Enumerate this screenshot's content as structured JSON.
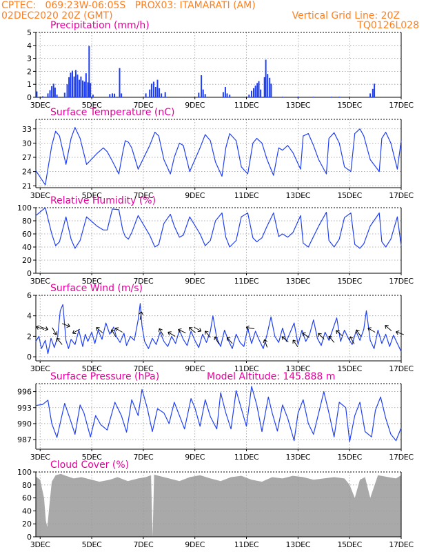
{
  "header": {
    "line1_left": "CPTEC:   069:23W-06:05S   PROX03: ITAMARATI (AM)",
    "line2_left": "02DEC2020 20Z (GMT)",
    "grid_note": "Vertical Grid Line: 20Z",
    "code": "TQ0126L028"
  },
  "colors": {
    "header": "#ff7f1e",
    "title": "#e6009a",
    "series": "#1f3ff0",
    "cloud": "#a9a9a9",
    "grid": "#9a9a9a"
  },
  "x_ticks": [
    "3DEC",
    "5DEC",
    "7DEC",
    "9DEC",
    "11DEC",
    "13DEC",
    "15DEC",
    "17DEC"
  ],
  "chart_data": [
    {
      "type": "bar",
      "title": "Precipitation (mm/h)",
      "ylim": [
        0,
        5
      ],
      "yticks": [
        0,
        1,
        2,
        3,
        4,
        5
      ],
      "x_range_days": [
        2.833,
        17.0
      ],
      "bars": [
        [
          2.87,
          0.45
        ],
        [
          3.1,
          0.08
        ],
        [
          3.3,
          0.3
        ],
        [
          3.38,
          0.55
        ],
        [
          3.45,
          0.85
        ],
        [
          3.52,
          1.05
        ],
        [
          3.58,
          0.75
        ],
        [
          3.65,
          0.2
        ],
        [
          3.95,
          0.35
        ],
        [
          4.05,
          1.0
        ],
        [
          4.12,
          1.55
        ],
        [
          4.18,
          1.9
        ],
        [
          4.25,
          2.05
        ],
        [
          4.32,
          1.6
        ],
        [
          4.38,
          2.1
        ],
        [
          4.45,
          1.75
        ],
        [
          4.52,
          1.35
        ],
        [
          4.58,
          1.6
        ],
        [
          4.65,
          1.3
        ],
        [
          4.72,
          1.2
        ],
        [
          4.78,
          1.85
        ],
        [
          4.85,
          1.15
        ],
        [
          4.9,
          3.95
        ],
        [
          4.95,
          1.1
        ],
        [
          5.05,
          0.2
        ],
        [
          5.7,
          0.25
        ],
        [
          5.8,
          0.3
        ],
        [
          5.88,
          0.28
        ],
        [
          6.08,
          2.25
        ],
        [
          6.15,
          0.3
        ],
        [
          7.1,
          0.3
        ],
        [
          7.25,
          0.6
        ],
        [
          7.32,
          1.05
        ],
        [
          7.4,
          1.2
        ],
        [
          7.48,
          0.8
        ],
        [
          7.55,
          1.35
        ],
        [
          7.62,
          0.7
        ],
        [
          7.7,
          0.3
        ],
        [
          7.85,
          0.4
        ],
        [
          9.15,
          0.35
        ],
        [
          9.25,
          1.7
        ],
        [
          9.32,
          0.6
        ],
        [
          9.4,
          0.25
        ],
        [
          10.1,
          0.4
        ],
        [
          10.18,
          0.8
        ],
        [
          10.25,
          0.3
        ],
        [
          10.35,
          0.2
        ],
        [
          11.1,
          0.2
        ],
        [
          11.2,
          0.5
        ],
        [
          11.28,
          0.7
        ],
        [
          11.35,
          0.9
        ],
        [
          11.42,
          1.1
        ],
        [
          11.48,
          1.25
        ],
        [
          11.55,
          0.6
        ],
        [
          11.7,
          1.55
        ],
        [
          11.75,
          2.9
        ],
        [
          11.82,
          1.8
        ],
        [
          11.9,
          1.5
        ],
        [
          11.96,
          1.05
        ],
        [
          12.4,
          0.05
        ],
        [
          13.0,
          0.05
        ],
        [
          13.6,
          0.05
        ],
        [
          14.3,
          0.05
        ],
        [
          14.6,
          0.05
        ],
        [
          15.8,
          0.3
        ],
        [
          15.9,
          0.65
        ],
        [
          15.96,
          1.05
        ]
      ]
    },
    {
      "type": "line",
      "title": "Surface Temperature (nC)",
      "ylim": [
        20.6,
        35
      ],
      "yticks": [
        21,
        24,
        27,
        30,
        33
      ],
      "x_range_days": [
        2.833,
        17.0
      ],
      "x": [
        2.833,
        3.2,
        3.45,
        3.6,
        3.75,
        4.0,
        4.2,
        4.35,
        4.55,
        4.8,
        5.2,
        5.45,
        5.6,
        5.8,
        6.05,
        6.2,
        6.3,
        6.42,
        6.55,
        6.8,
        7.25,
        7.45,
        7.6,
        7.8,
        8.05,
        8.2,
        8.4,
        8.55,
        8.8,
        9.2,
        9.4,
        9.6,
        9.8,
        10.05,
        10.2,
        10.35,
        10.6,
        10.8,
        11.05,
        11.25,
        11.4,
        11.6,
        11.8,
        12.05,
        12.25,
        12.4,
        12.6,
        12.8,
        13.1,
        13.2,
        13.4,
        13.6,
        13.8,
        14.1,
        14.2,
        14.4,
        14.6,
        14.8,
        15.05,
        15.2,
        15.4,
        15.55,
        15.8,
        16.15,
        16.25,
        16.4,
        16.6,
        16.85,
        17.0
      ],
      "values": [
        24.2,
        21.2,
        29.5,
        32.5,
        31.5,
        25.5,
        31.0,
        33.3,
        31.0,
        25.5,
        27.8,
        29.0,
        28.2,
        26.2,
        23.5,
        28.0,
        30.5,
        30.2,
        29.0,
        24.5,
        29.5,
        32.3,
        31.5,
        26.5,
        23.5,
        27.0,
        30.0,
        29.5,
        24.0,
        29.0,
        31.8,
        30.5,
        26.0,
        23.0,
        29.0,
        32.0,
        30.5,
        25.0,
        23.5,
        30.0,
        31.0,
        30.0,
        26.5,
        23.2,
        29.0,
        28.5,
        29.5,
        28.0,
        24.5,
        31.5,
        32.0,
        29.5,
        26.5,
        23.5,
        31.0,
        32.2,
        30.0,
        25.0,
        24.0,
        32.0,
        33.0,
        31.5,
        26.5,
        24.0,
        31.0,
        32.3,
        30.0,
        24.5,
        30.5
      ]
    },
    {
      "type": "line",
      "title": "Relative Humidity (%)",
      "ylim": [
        0,
        100
      ],
      "yticks": [
        0,
        20,
        40,
        60,
        80,
        100
      ],
      "x_range_days": [
        2.833,
        17.0
      ],
      "x": [
        2.833,
        3.2,
        3.45,
        3.6,
        3.75,
        4.0,
        4.2,
        4.35,
        4.55,
        4.8,
        5.2,
        5.45,
        5.6,
        5.8,
        6.05,
        6.2,
        6.3,
        6.42,
        6.55,
        6.8,
        7.25,
        7.45,
        7.6,
        7.8,
        8.05,
        8.2,
        8.4,
        8.55,
        8.8,
        9.2,
        9.4,
        9.6,
        9.8,
        10.05,
        10.2,
        10.35,
        10.6,
        10.8,
        11.05,
        11.25,
        11.4,
        11.6,
        11.8,
        12.05,
        12.25,
        12.4,
        12.6,
        12.8,
        13.1,
        13.2,
        13.4,
        13.6,
        13.8,
        14.1,
        14.2,
        14.4,
        14.6,
        14.8,
        15.05,
        15.2,
        15.4,
        15.55,
        15.8,
        16.15,
        16.25,
        16.4,
        16.6,
        16.85,
        17.0
      ],
      "values": [
        88,
        100,
        60,
        42,
        48,
        86,
        52,
        38,
        50,
        86,
        72,
        66,
        66,
        98,
        97,
        66,
        56,
        52,
        62,
        88,
        58,
        40,
        44,
        76,
        90,
        72,
        55,
        58,
        86,
        60,
        42,
        50,
        80,
        92,
        55,
        40,
        50,
        86,
        92,
        54,
        48,
        54,
        72,
        92,
        56,
        60,
        55,
        62,
        88,
        46,
        40,
        56,
        72,
        93,
        50,
        40,
        52,
        85,
        92,
        44,
        38,
        45,
        72,
        92,
        48,
        40,
        52,
        86,
        42
      ]
    },
    {
      "type": "line",
      "title": "Surface Wind (m/s)",
      "ylim": [
        -0.4,
        6
      ],
      "yticks": [
        0,
        2,
        4,
        6
      ],
      "x_range_days": [
        2.833,
        17.0
      ],
      "x": [
        2.833,
        2.95,
        3.05,
        3.2,
        3.3,
        3.42,
        3.55,
        3.68,
        3.78,
        3.88,
        4.0,
        4.1,
        4.2,
        4.35,
        4.5,
        4.65,
        4.75,
        4.85,
        5.0,
        5.12,
        5.25,
        5.4,
        5.55,
        5.7,
        5.85,
        5.95,
        6.1,
        6.25,
        6.35,
        6.5,
        6.65,
        6.8,
        6.88,
        6.95,
        7.05,
        7.2,
        7.35,
        7.5,
        7.65,
        7.8,
        7.95,
        8.1,
        8.25,
        8.4,
        8.55,
        8.7,
        8.85,
        9.0,
        9.15,
        9.3,
        9.45,
        9.6,
        9.7,
        9.85,
        10.0,
        10.15,
        10.3,
        10.45,
        10.6,
        10.75,
        10.9,
        11.05,
        11.2,
        11.35,
        11.5,
        11.65,
        11.8,
        11.95,
        12.1,
        12.25,
        12.4,
        12.55,
        12.7,
        12.85,
        13.0,
        13.15,
        13.3,
        13.45,
        13.6,
        13.75,
        13.9,
        14.05,
        14.2,
        14.35,
        14.5,
        14.65,
        14.8,
        14.95,
        15.1,
        15.25,
        15.4,
        15.55,
        15.65,
        15.8,
        15.95,
        16.1,
        16.25,
        16.4,
        16.55,
        16.7,
        16.85,
        17.0
      ],
      "values": [
        1.5,
        2.0,
        0.8,
        1.6,
        0.3,
        1.8,
        0.9,
        2.0,
        4.5,
        5.1,
        1.6,
        0.8,
        1.7,
        1.2,
        2.6,
        1.0,
        2.2,
        1.5,
        2.4,
        1.3,
        2.6,
        1.7,
        3.3,
        2.2,
        2.9,
        2.0,
        1.4,
        2.3,
        1.1,
        2.0,
        1.6,
        3.6,
        5.2,
        3.0,
        1.5,
        0.8,
        1.8,
        1.2,
        2.4,
        1.5,
        1.0,
        2.0,
        1.3,
        2.6,
        1.7,
        1.1,
        2.5,
        1.6,
        0.9,
        2.2,
        1.4,
        2.5,
        4.0,
        1.8,
        1.0,
        2.6,
        1.6,
        0.8,
        2.2,
        1.4,
        1.0,
        2.8,
        1.3,
        2.5,
        1.6,
        0.8,
        2.2,
        3.9,
        2.0,
        1.4,
        2.8,
        1.5,
        2.4,
        3.3,
        1.2,
        2.6,
        1.5,
        2.2,
        3.6,
        1.8,
        1.1,
        2.4,
        1.6,
        2.7,
        3.8,
        1.5,
        2.6,
        1.8,
        1.2,
        2.5,
        1.6,
        2.7,
        4.5,
        1.6,
        0.8,
        2.6,
        1.3,
        2.2,
        1.0,
        2.1,
        1.3,
        0.5
      ],
      "arrows": [
        [
          3.0,
          2.8,
          200
        ],
        [
          3.15,
          2.8,
          20
        ],
        [
          3.55,
          2.5,
          60
        ],
        [
          3.75,
          1.5,
          230
        ],
        [
          4.0,
          3.1,
          20
        ],
        [
          4.4,
          2.5,
          150
        ],
        [
          5.3,
          2.6,
          220
        ],
        [
          5.85,
          2.3,
          240
        ],
        [
          6.05,
          2.6,
          210
        ],
        [
          6.9,
          4.0,
          280
        ],
        [
          7.7,
          2.4,
          240
        ],
        [
          8.1,
          2.2,
          210
        ],
        [
          8.5,
          2.5,
          205
        ],
        [
          8.9,
          2.6,
          220
        ],
        [
          9.1,
          2.7,
          30
        ],
        [
          9.5,
          2.2,
          230
        ],
        [
          9.85,
          1.6,
          240
        ],
        [
          10.35,
          1.6,
          230
        ],
        [
          11.15,
          2.8,
          190
        ],
        [
          11.75,
          1.3,
          250
        ],
        [
          12.5,
          1.7,
          220
        ],
        [
          12.9,
          1.3,
          235
        ],
        [
          13.3,
          2.1,
          215
        ],
        [
          13.9,
          2.0,
          225
        ],
        [
          14.3,
          1.7,
          230
        ],
        [
          14.6,
          2.3,
          220
        ],
        [
          15.1,
          1.6,
          240
        ],
        [
          15.35,
          2.3,
          235
        ],
        [
          15.85,
          2.6,
          210
        ],
        [
          16.5,
          2.8,
          220
        ],
        [
          16.95,
          2.3,
          200
        ]
      ]
    },
    {
      "type": "line",
      "title": "Surface Pressure (hPa)",
      "subtitle": "Model Altitude: 145.888 m",
      "ylim": [
        985.2,
        997.5
      ],
      "yticks": [
        987,
        990,
        993,
        996
      ],
      "x_range_days": [
        2.833,
        17.0
      ],
      "x": [
        2.833,
        3.1,
        3.3,
        3.45,
        3.65,
        3.95,
        4.15,
        4.35,
        4.55,
        4.7,
        4.95,
        5.15,
        5.35,
        5.6,
        5.9,
        6.15,
        6.35,
        6.55,
        6.8,
        6.95,
        7.15,
        7.35,
        7.55,
        7.8,
        8.0,
        8.2,
        8.4,
        8.6,
        8.85,
        9.0,
        9.2,
        9.4,
        9.6,
        9.85,
        10.0,
        10.2,
        10.4,
        10.6,
        10.85,
        11.0,
        11.2,
        11.4,
        11.6,
        11.85,
        12.0,
        12.2,
        12.4,
        12.6,
        12.85,
        13.0,
        13.2,
        13.4,
        13.6,
        13.85,
        14.0,
        14.2,
        14.4,
        14.6,
        14.85,
        15.0,
        15.2,
        15.4,
        15.6,
        15.85,
        16.0,
        16.2,
        16.4,
        16.6,
        16.8,
        17.0
      ],
      "values": [
        993.4,
        993.6,
        994.4,
        990.0,
        987.4,
        993.8,
        991.0,
        988.0,
        993.5,
        992.0,
        987.5,
        991.5,
        989.8,
        988.8,
        994.0,
        991.5,
        988.4,
        994.5,
        991.5,
        996.4,
        993.0,
        988.5,
        992.8,
        992.0,
        990.0,
        994.0,
        991.5,
        989.0,
        994.7,
        993.0,
        989.5,
        994.5,
        991.3,
        989.0,
        995.8,
        992.0,
        989.0,
        996.2,
        992.0,
        989.5,
        997.0,
        993.5,
        988.5,
        995.0,
        992.0,
        988.6,
        993.5,
        991.0,
        986.8,
        992.0,
        994.5,
        990.0,
        988.0,
        993.0,
        996.0,
        992.0,
        987.5,
        994.0,
        993.0,
        986.6,
        991.5,
        994.0,
        988.5,
        987.5,
        992.5,
        995.0,
        991.0,
        988.0,
        986.8,
        989.2
      ]
    },
    {
      "type": "area",
      "title": "Cloud Cover (%)",
      "ylim": [
        0,
        100
      ],
      "yticks": [
        0,
        20,
        40,
        60,
        80,
        100
      ],
      "x_range_days": [
        2.833,
        17.0
      ],
      "x": [
        2.833,
        3.0,
        3.15,
        3.22,
        3.28,
        3.35,
        3.45,
        3.6,
        3.8,
        4.0,
        4.3,
        4.6,
        5.0,
        5.3,
        5.7,
        6.0,
        6.4,
        6.8,
        7.1,
        7.3,
        7.36,
        7.42,
        7.6,
        8.0,
        8.4,
        8.8,
        9.2,
        9.6,
        10.0,
        10.4,
        10.8,
        11.2,
        11.6,
        12.0,
        12.4,
        12.8,
        13.2,
        13.6,
        14.0,
        14.4,
        14.8,
        15.0,
        15.2,
        15.4,
        15.6,
        15.8,
        16.1,
        16.5,
        16.8,
        17.0
      ],
      "values": [
        93,
        88,
        60,
        25,
        15,
        45,
        85,
        95,
        97,
        94,
        90,
        92,
        88,
        85,
        88,
        92,
        86,
        90,
        92,
        95,
        0,
        96,
        94,
        90,
        86,
        92,
        95,
        90,
        86,
        92,
        94,
        88,
        85,
        92,
        90,
        94,
        92,
        88,
        90,
        92,
        90,
        80,
        60,
        88,
        92,
        60,
        95,
        92,
        90,
        95
      ]
    }
  ]
}
